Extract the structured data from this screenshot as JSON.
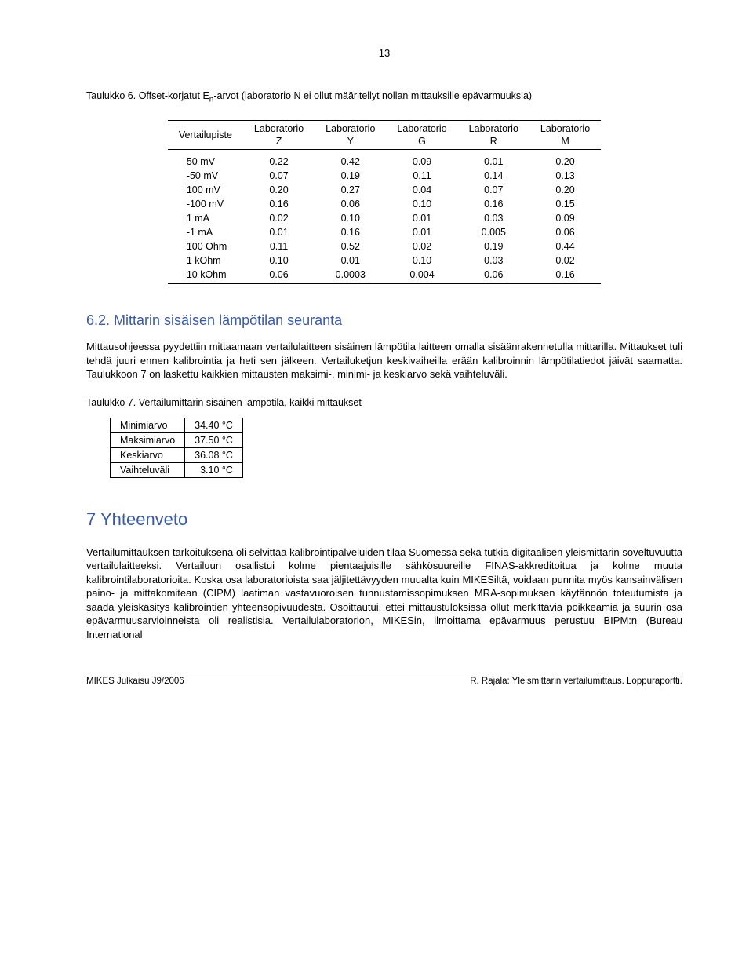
{
  "page_number": "13",
  "table6": {
    "caption_prefix": "Taulukko 6. Offset-korjatut E",
    "caption_sub": "n",
    "caption_suffix": "-arvot (laboratorio N ei ollut määritellyt nollan mittauksille epävarmuuksia)",
    "headers": [
      "Vertailupiste",
      "Laboratorio\nZ",
      "Laboratorio\nY",
      "Laboratorio\nG",
      "Laboratorio\nR",
      "Laboratorio\nM"
    ],
    "rows": [
      [
        "50 mV",
        "0.22",
        "0.42",
        "0.09",
        "0.01",
        "0.20"
      ],
      [
        "-50 mV",
        "0.07",
        "0.19",
        "0.11",
        "0.14",
        "0.13"
      ],
      [
        "100 mV",
        "0.20",
        "0.27",
        "0.04",
        "0.07",
        "0.20"
      ],
      [
        "-100 mV",
        "0.16",
        "0.06",
        "0.10",
        "0.16",
        "0.15"
      ],
      [
        "1 mA",
        "0.02",
        "0.10",
        "0.01",
        "0.03",
        "0.09"
      ],
      [
        "-1 mA",
        "0.01",
        "0.16",
        "0.01",
        "0.005",
        "0.06"
      ],
      [
        "100 Ohm",
        "0.11",
        "0.52",
        "0.02",
        "0.19",
        "0.44"
      ],
      [
        "1 kOhm",
        "0.10",
        "0.01",
        "0.10",
        "0.03",
        "0.02"
      ],
      [
        "10 kOhm",
        "0.06",
        "0.0003",
        "0.004",
        "0.06",
        "0.16"
      ]
    ]
  },
  "section62": {
    "heading": "6.2. Mittarin sisäisen lämpötilan seuranta",
    "para": "Mittausohjeessa pyydettiin mittaamaan vertailulaitteen sisäinen lämpötila laitteen omalla sisäänrakennetulla mittarilla. Mittaukset tuli tehdä juuri ennen kalibrointia ja heti sen jälkeen. Vertailuketjun keskivaiheilla erään kalibroinnin lämpötilatiedot jäivät saamatta. Taulukkoon 7 on laskettu kaikkien mittausten maksimi-, minimi- ja keskiarvo sekä vaihteluväli."
  },
  "table7": {
    "caption": "Taulukko 7. Vertailumittarin sisäinen lämpötila, kaikki mittaukset",
    "rows": [
      [
        "Minimiarvo",
        "34.40 °C"
      ],
      [
        "Maksimiarvo",
        "37.50 °C"
      ],
      [
        "Keskiarvo",
        "36.08 °C"
      ],
      [
        "Vaihteluväli",
        "3.10 °C"
      ]
    ]
  },
  "section7": {
    "heading": "7 Yhteenveto",
    "para": "Vertailumittauksen tarkoituksena oli selvittää kalibrointipalveluiden tilaa Suomessa sekä tutkia digitaalisen yleismittarin soveltuvuutta vertailulaitteeksi. Vertailuun osallistui kolme pientaajuisille sähkösuureille FINAS-akkreditoitua ja kolme muuta kalibrointilaboratorioita. Koska osa laboratorioista saa jäljitettävyyden muualta kuin MIKESiltä, voidaan punnita myös kansainvälisen paino- ja mittakomitean (CIPM) laatiman vastavuoroisen tunnustamissopimuksen MRA-sopimuksen käytännön toteutumista ja saada yleiskäsitys kalibrointien yhteensopivuudesta. Osoittautui, ettei mittaustuloksissa ollut merkittäviä poikkeamia ja suurin osa epävarmuusarvioinneista oli realistisia. Vertailulaboratorion, MIKESin, ilmoittama epävarmuus perustuu BIPM:n (Bureau International"
  },
  "footer": {
    "left": "MIKES Julkaisu J9/2006",
    "right": "R. Rajala: Yleismittarin vertailumittaus. Loppuraportti."
  }
}
